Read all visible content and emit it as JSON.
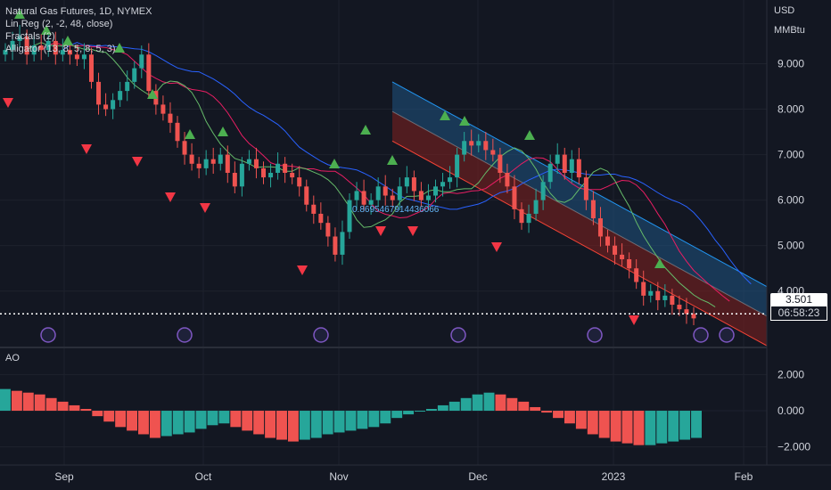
{
  "legend": {
    "symbol": "Natural Gas Futures, 1D, NYMEX",
    "linreg": "Lin Reg (2, -2, 48, close)",
    "fractals": "Fractals (2)",
    "alligator": "Alligator (13, 8, 5, 8, 5, 3)"
  },
  "axis_currency": "USD",
  "axis_unit": "MMBtu",
  "price_label": "3.501",
  "countdown_label": "06:58:23",
  "ao_label": "AO",
  "linreg_value_label": "0.8695467914436066",
  "colors": {
    "background": "#131722",
    "up": "#26a69a",
    "down": "#ef5350",
    "fractal_up": "#4caf50",
    "fractal_down": "#f23645",
    "jaw": "#2962ff",
    "teeth": "#e91e63",
    "lips": "#66bb6a",
    "channel_upper": "#1e4f7a",
    "channel_lower": "#7a1f1f",
    "event_icon": "#7e57c2"
  },
  "chart_data": [
    {
      "type": "candlestick",
      "title": "Natural Gas Futures, 1D, NYMEX",
      "x_labels": [
        "Sep",
        "Oct",
        "Nov",
        "Dec",
        "2023",
        "Feb"
      ],
      "y_ticks": [
        "9.000",
        "8.000",
        "7.000",
        "6.000",
        "5.000",
        "4.000"
      ],
      "ylim": [
        2.8,
        10.4
      ],
      "y_unit": "USD / MMBtu",
      "last_price": 3.501,
      "close_series_approx": [
        9.3,
        9.5,
        9.6,
        9.2,
        9.4,
        9.3,
        9.5,
        9.2,
        9.3,
        9.2,
        9.1,
        9.2,
        8.6,
        8.1,
        8.0,
        8.2,
        8.4,
        8.6,
        8.9,
        9.2,
        8.4,
        8.1,
        7.9,
        7.7,
        7.3,
        7.0,
        6.8,
        6.7,
        6.9,
        6.8,
        7.0,
        6.6,
        6.3,
        6.8,
        6.9,
        6.7,
        6.5,
        6.6,
        6.8,
        6.6,
        6.5,
        6.3,
        5.9,
        5.7,
        5.5,
        5.2,
        4.8,
        5.3,
        6.0,
        6.2,
        5.9,
        6.0,
        6.3,
        6.1,
        6.0,
        6.3,
        6.5,
        6.2,
        6.0,
        6.1,
        6.3,
        6.4,
        6.5,
        7.0,
        7.3,
        7.2,
        7.3,
        7.1,
        7.0,
        6.6,
        6.3,
        5.8,
        5.5,
        5.7,
        6.0,
        6.4,
        6.8,
        7.0,
        6.6,
        6.9,
        6.5,
        6.0,
        5.6,
        5.2,
        5.0,
        4.8,
        4.7,
        4.5,
        4.2,
        3.9,
        4.0,
        3.8,
        3.9,
        3.7,
        3.6,
        3.5,
        3.4
      ],
      "linreg_channel": {
        "start": [
          7.3,
          8.6
        ],
        "end": [
          2.8,
          4.1
        ]
      },
      "fractals_up_count": 14,
      "fractals_down_count": 11
    },
    {
      "type": "bar",
      "title": "AO",
      "y_ticks": [
        "2.000",
        "0.000",
        "−2.000"
      ],
      "ylim": [
        -3.0,
        3.2
      ],
      "values_approx": [
        1.2,
        1.1,
        1.0,
        0.9,
        0.7,
        0.5,
        0.3,
        0.1,
        -0.3,
        -0.6,
        -0.9,
        -1.1,
        -1.3,
        -1.5,
        -1.4,
        -1.3,
        -1.2,
        -1.0,
        -0.8,
        -0.7,
        -0.9,
        -1.1,
        -1.3,
        -1.5,
        -1.6,
        -1.7,
        -1.6,
        -1.5,
        -1.3,
        -1.2,
        -1.1,
        -1.0,
        -0.9,
        -0.7,
        -0.4,
        -0.2,
        0.0,
        0.1,
        0.3,
        0.5,
        0.7,
        0.9,
        1.0,
        0.9,
        0.7,
        0.5,
        0.2,
        -0.1,
        -0.4,
        -0.7,
        -1.0,
        -1.3,
        -1.5,
        -1.7,
        -1.8,
        -1.9,
        -1.9,
        -1.8,
        -1.7,
        -1.6,
        -1.5
      ]
    }
  ]
}
